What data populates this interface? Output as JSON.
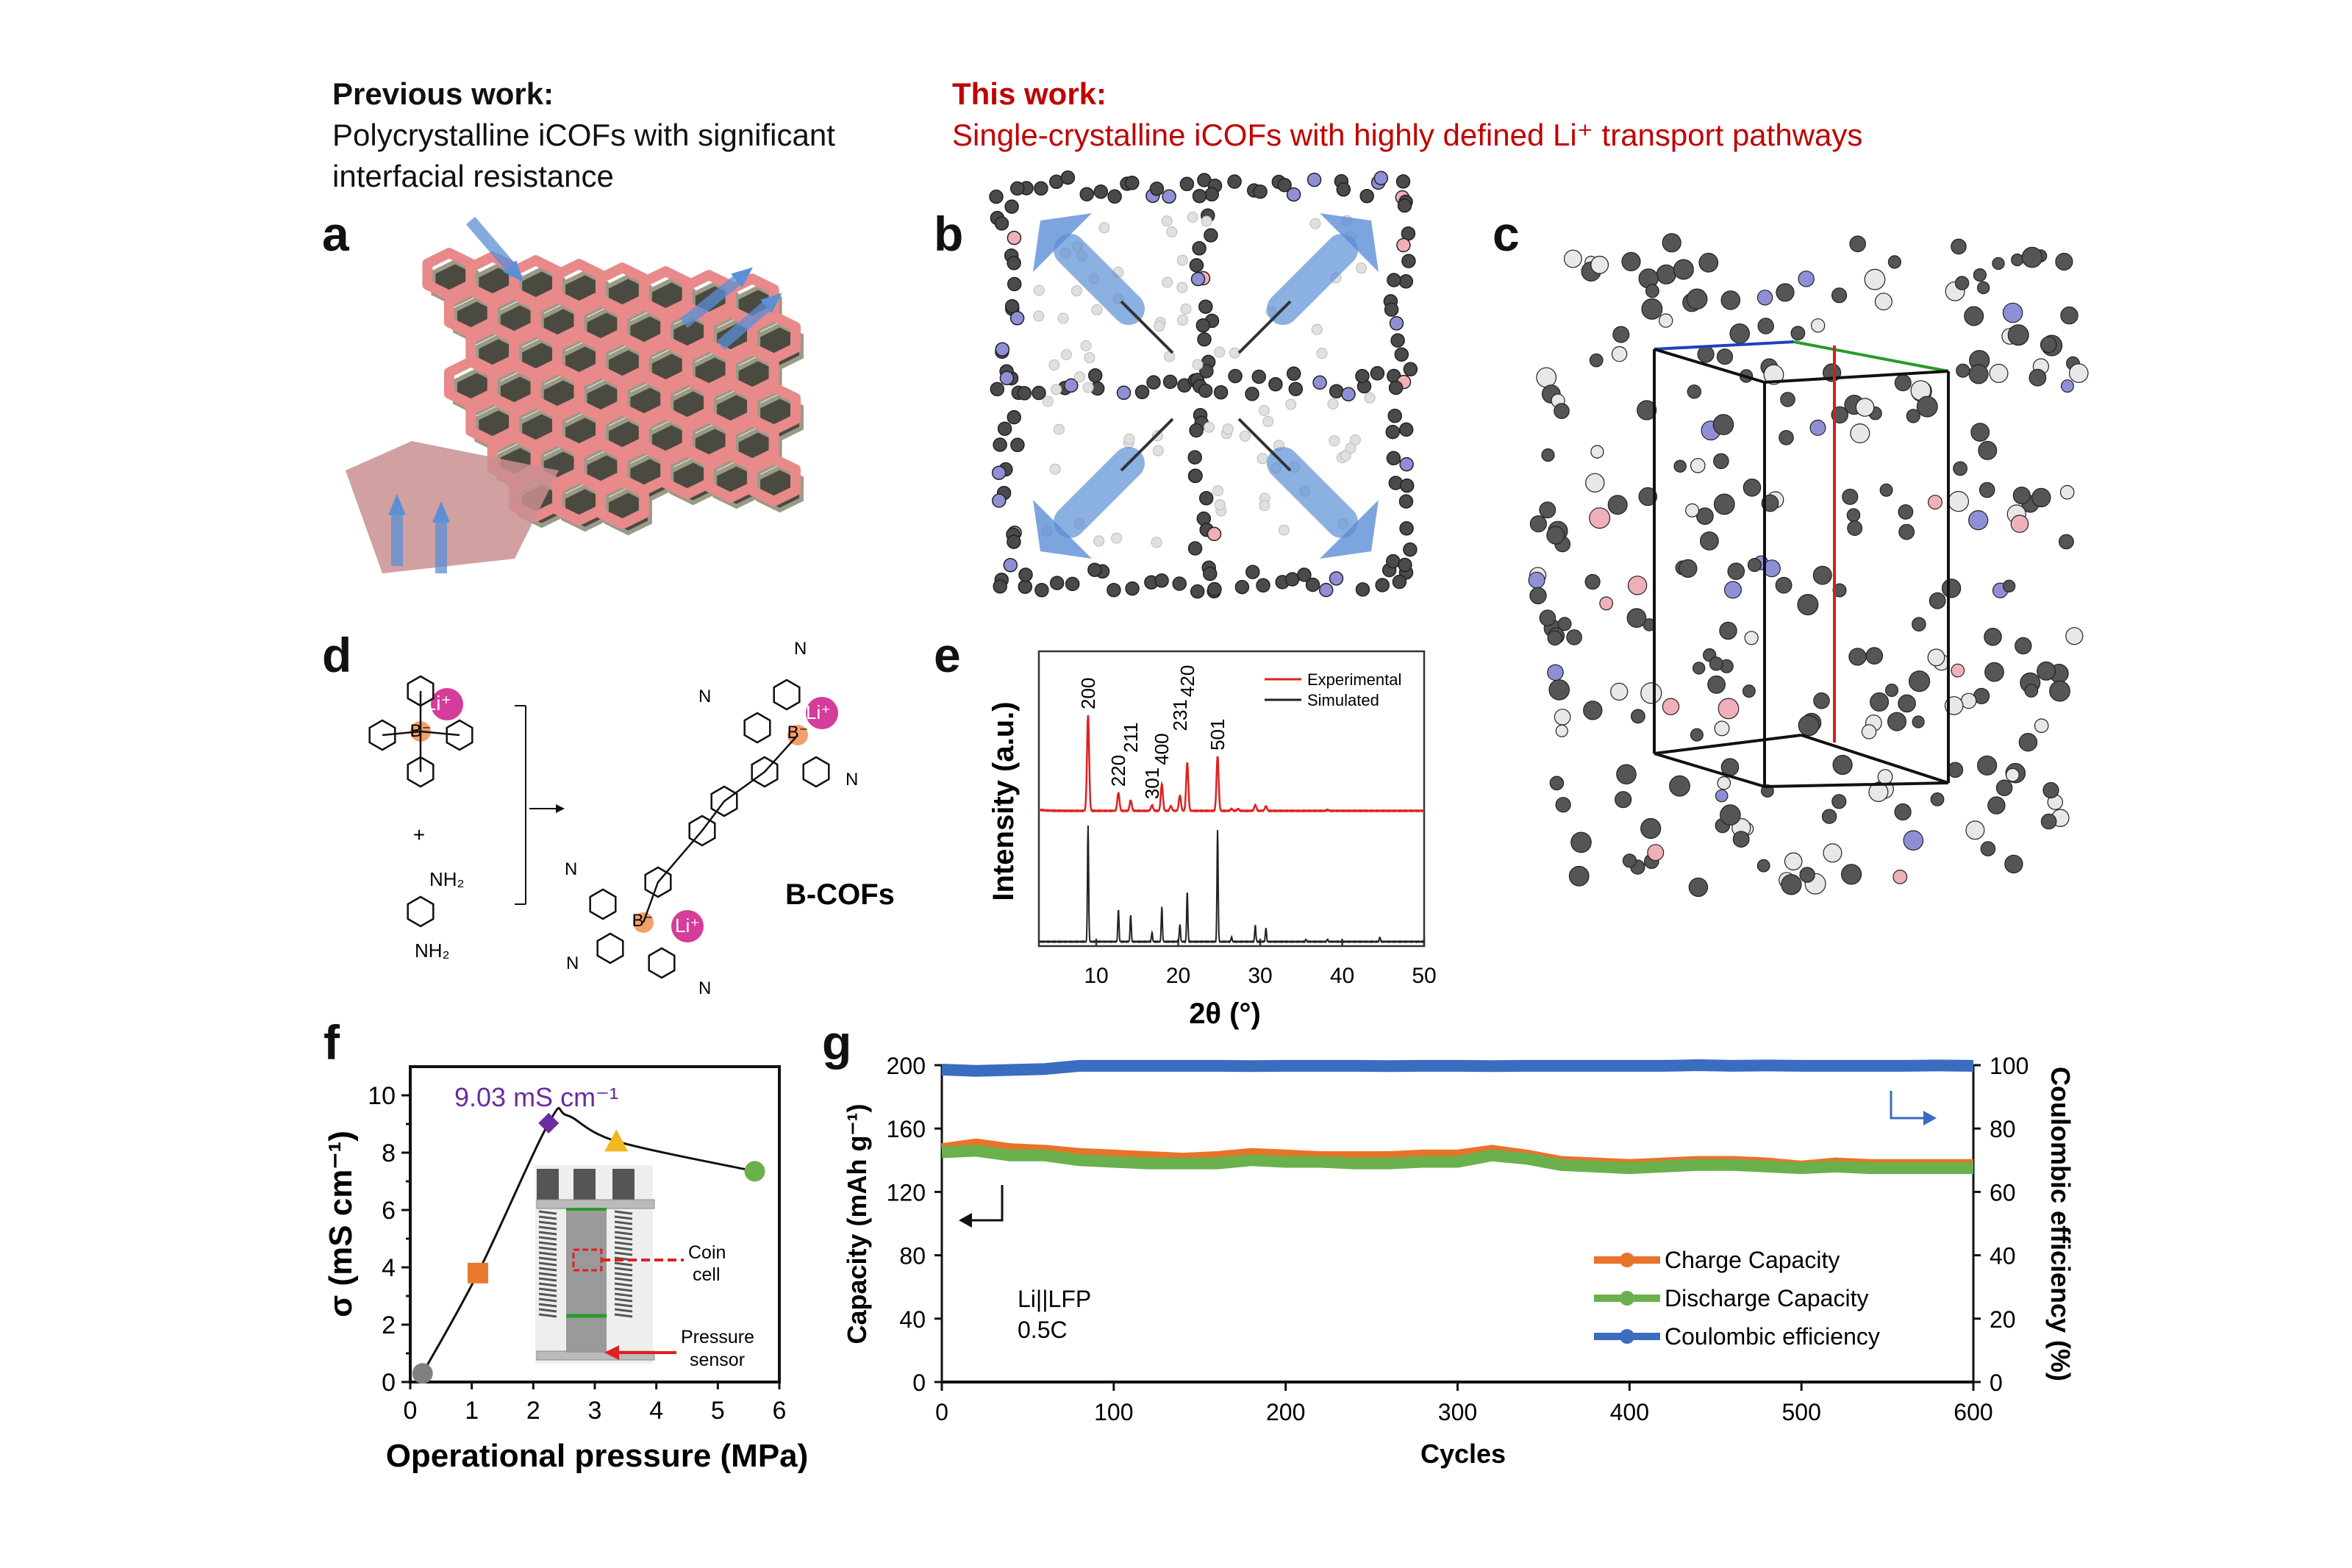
{
  "header": {
    "previous_title": "Previous work:",
    "previous_line1": "Polycrystalline iCOFs with significant",
    "previous_line2": "interfacial resistance",
    "this_title": "This work:",
    "this_line1": "Single-crystalline iCOFs with highly defined Li⁺ transport pathways"
  },
  "panel_labels": {
    "a": "a",
    "b": "b",
    "c": "c",
    "d": "d",
    "e": "e",
    "f": "f",
    "g": "g"
  },
  "colors": {
    "this_work": "#c00000",
    "pink": "#e8898a",
    "arrow_blue": "#5b8fd6",
    "atom_gray": "#555555",
    "atom_blue": "#8f8fd8",
    "atom_pink": "#f0b0b8",
    "li_magenta": "#d63c9a",
    "boron_orange": "#f4a06a"
  },
  "scheme_d": {
    "li_label": "Li⁺",
    "b_label": "B⁻",
    "plus": "+",
    "nh2_top": "NH₂",
    "nh2_bottom": "NH₂",
    "n_label": "N",
    "product": "B-COFs"
  },
  "inset_f": {
    "coin_cell": "Coin cell",
    "coin_line1": "Coin",
    "coin_line2": "cell",
    "sensor_line1": "Pressure",
    "sensor_line2": "sensor"
  },
  "chart_data": [
    {
      "id": "e",
      "type": "line",
      "xlabel": "2θ (°)",
      "ylabel": "Intensity (a.u.)",
      "xlim": [
        3,
        50
      ],
      "xticks": [
        10,
        20,
        30,
        40,
        50
      ],
      "grid": false,
      "legend_position": "top-right",
      "series": [
        {
          "name": "Experimental",
          "color": "#e02020",
          "peaks": [
            [
              9.0,
              1.0
            ],
            [
              12.7,
              0.19
            ],
            [
              14.2,
              0.11
            ],
            [
              16.8,
              0.06
            ],
            [
              18.0,
              0.28
            ],
            [
              19.1,
              0.05
            ],
            [
              20.2,
              0.16
            ],
            [
              21.1,
              0.5
            ],
            [
              24.8,
              0.57
            ],
            [
              26.5,
              0.02
            ],
            [
              27.3,
              0.02
            ],
            [
              29.4,
              0.06
            ],
            [
              30.7,
              0.05
            ],
            [
              38.2,
              0.01
            ]
          ]
        },
        {
          "name": "Simulated",
          "color": "#222222",
          "peaks": [
            [
              9.0,
              1.0
            ],
            [
              12.7,
              0.28
            ],
            [
              14.2,
              0.23
            ],
            [
              16.8,
              0.08
            ],
            [
              18.0,
              0.3
            ],
            [
              20.2,
              0.15
            ],
            [
              21.1,
              0.43
            ],
            [
              24.8,
              0.96
            ],
            [
              26.5,
              0.04
            ],
            [
              29.4,
              0.14
            ],
            [
              30.7,
              0.12
            ],
            [
              35.6,
              0.02
            ],
            [
              38.2,
              0.02
            ],
            [
              44.6,
              0.04
            ]
          ]
        }
      ],
      "peak_labels": [
        {
          "text": "200",
          "x": 9.0
        },
        {
          "text": "220",
          "x": 12.7
        },
        {
          "text": "211",
          "x": 14.2
        },
        {
          "text": "301",
          "x": 16.8
        },
        {
          "text": "400",
          "x": 18.0
        },
        {
          "text": "231",
          "x": 20.2
        },
        {
          "text": "420",
          "x": 21.1
        },
        {
          "text": "501",
          "x": 24.8
        }
      ]
    },
    {
      "id": "f",
      "type": "scatter",
      "xlabel": "Operational pressure (MPa)",
      "ylabel": "σ (mS cm⁻¹)",
      "xlim": [
        0,
        6
      ],
      "ylim": [
        0,
        10.5
      ],
      "xticks": [
        0,
        1,
        2,
        3,
        4,
        5,
        6
      ],
      "yticks": [
        0,
        2,
        4,
        6,
        8,
        10
      ],
      "grid": false,
      "points": [
        {
          "x": 0.2,
          "y": 0.3,
          "marker": "circle",
          "color": "#808080"
        },
        {
          "x": 1.1,
          "y": 3.8,
          "marker": "square",
          "color": "#e8782e"
        },
        {
          "x": 2.25,
          "y": 9.03,
          "marker": "diamond",
          "color": "#6a2ca0"
        },
        {
          "x": 3.35,
          "y": 8.4,
          "marker": "triangle",
          "color": "#f0b820"
        },
        {
          "x": 5.6,
          "y": 7.35,
          "marker": "circle",
          "color": "#6ab04c"
        }
      ],
      "annotation": "9.03 mS cm⁻¹",
      "annotation_color": "#6a2ca0"
    },
    {
      "id": "g",
      "type": "line",
      "xlabel": "Cycles",
      "ylabel": "Capacity (mAh g⁻¹)",
      "y2label": "Coulombic efficiency (%)",
      "xlim": [
        0,
        600
      ],
      "ylim": [
        0,
        200
      ],
      "y2lim": [
        0,
        100
      ],
      "xticks": [
        0,
        100,
        200,
        300,
        400,
        500,
        600
      ],
      "yticks": [
        0,
        40,
        80,
        120,
        160,
        200
      ],
      "y2ticks": [
        0,
        20,
        40,
        60,
        80,
        100
      ],
      "grid": false,
      "legend_position": "bottom-right",
      "annotation_line1": "Li||LFP",
      "annotation_line2": "0.5C",
      "x": [
        0,
        20,
        40,
        60,
        80,
        100,
        120,
        140,
        160,
        180,
        200,
        220,
        240,
        260,
        280,
        300,
        320,
        340,
        360,
        380,
        400,
        420,
        440,
        460,
        480,
        500,
        520,
        540,
        560,
        580,
        600
      ],
      "series": [
        {
          "name": "Charge Capacity",
          "axis": "left",
          "color": "#e8732a",
          "values": [
            147,
            150,
            147,
            146,
            144,
            143,
            142,
            141,
            142,
            144,
            143,
            142,
            142,
            142,
            143,
            143,
            146,
            143,
            139,
            138,
            137,
            138,
            139,
            139,
            138,
            136,
            138,
            137,
            137,
            137,
            137
          ]
        },
        {
          "name": "Discharge Capacity",
          "axis": "left",
          "color": "#6ab04c",
          "values": [
            145,
            146,
            143,
            143,
            140,
            139,
            138,
            138,
            138,
            140,
            139,
            139,
            138,
            138,
            139,
            139,
            143,
            141,
            137,
            136,
            135,
            136,
            137,
            137,
            136,
            135,
            136,
            135,
            135,
            135,
            135
          ]
        },
        {
          "name": "Coulombic efficiency",
          "axis": "right",
          "color": "#3a6cc0",
          "values": [
            98.6,
            98.2,
            98.5,
            98.8,
            99.8,
            99.8,
            99.8,
            99.8,
            99.8,
            99.7,
            99.8,
            99.8,
            99.8,
            99.7,
            99.8,
            99.8,
            99.7,
            99.8,
            99.8,
            99.8,
            99.8,
            99.8,
            100,
            99.8,
            99.9,
            99.8,
            99.8,
            99.8,
            99.8,
            99.9,
            99.8
          ]
        }
      ]
    }
  ]
}
